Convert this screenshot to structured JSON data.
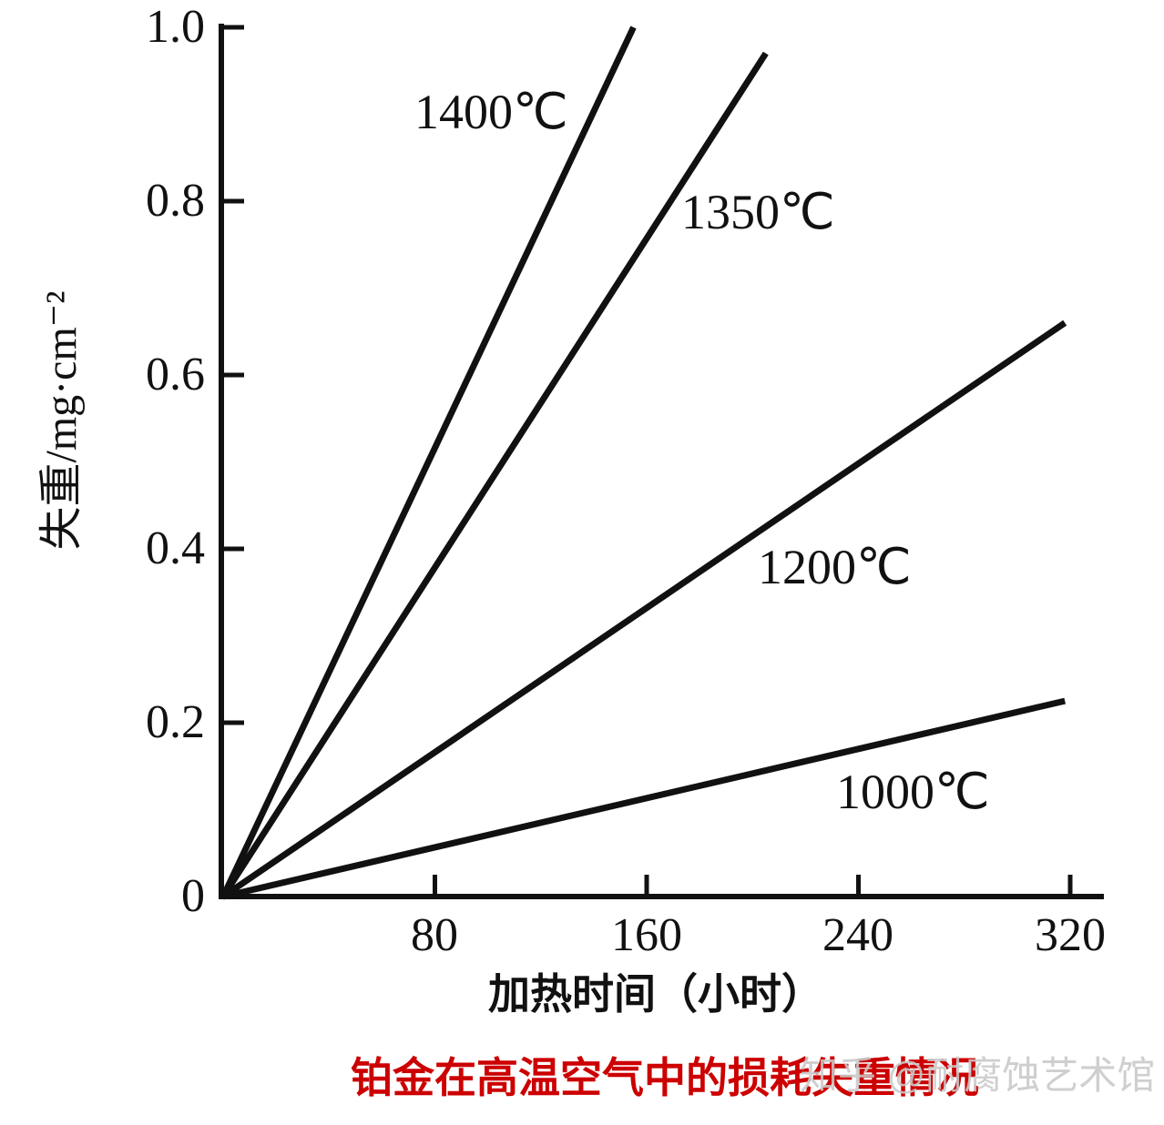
{
  "figure": {
    "caption": "铂金在高温空气中的损耗失重情况",
    "caption_color": "#cc0000",
    "watermark": "知乎 @耐腐蚀艺术馆"
  },
  "chart_data": {
    "type": "line",
    "title": "",
    "xlabel": "加热时间（小时）",
    "ylabel": "失重/mg·cm⁻²",
    "xlim": [
      0,
      330
    ],
    "ylim": [
      0,
      1.0
    ],
    "grid": false,
    "legend_position": "inline-labels",
    "line_color": "#111111",
    "x_ticks": [
      80,
      160,
      240,
      320
    ],
    "x_tick_labels": [
      "80",
      "160",
      "240",
      "320"
    ],
    "y_ticks": [
      0,
      0.2,
      0.4,
      0.6,
      0.8,
      1.0
    ],
    "y_tick_labels": [
      "0",
      "0.2",
      "0.4",
      "0.6",
      "0.8",
      "1.0"
    ],
    "series": [
      {
        "name": "1400C",
        "label": "1400℃",
        "points": [
          [
            0,
            0
          ],
          [
            155,
            1.0
          ]
        ]
      },
      {
        "name": "1350C",
        "label": "1350℃",
        "points": [
          [
            0,
            0
          ],
          [
            205,
            0.97
          ]
        ]
      },
      {
        "name": "1200C",
        "label": "1200℃",
        "points": [
          [
            0,
            0
          ],
          [
            318,
            0.66
          ]
        ]
      },
      {
        "name": "1000C",
        "label": "1000℃",
        "points": [
          [
            0,
            0
          ],
          [
            318,
            0.225
          ]
        ]
      }
    ]
  }
}
